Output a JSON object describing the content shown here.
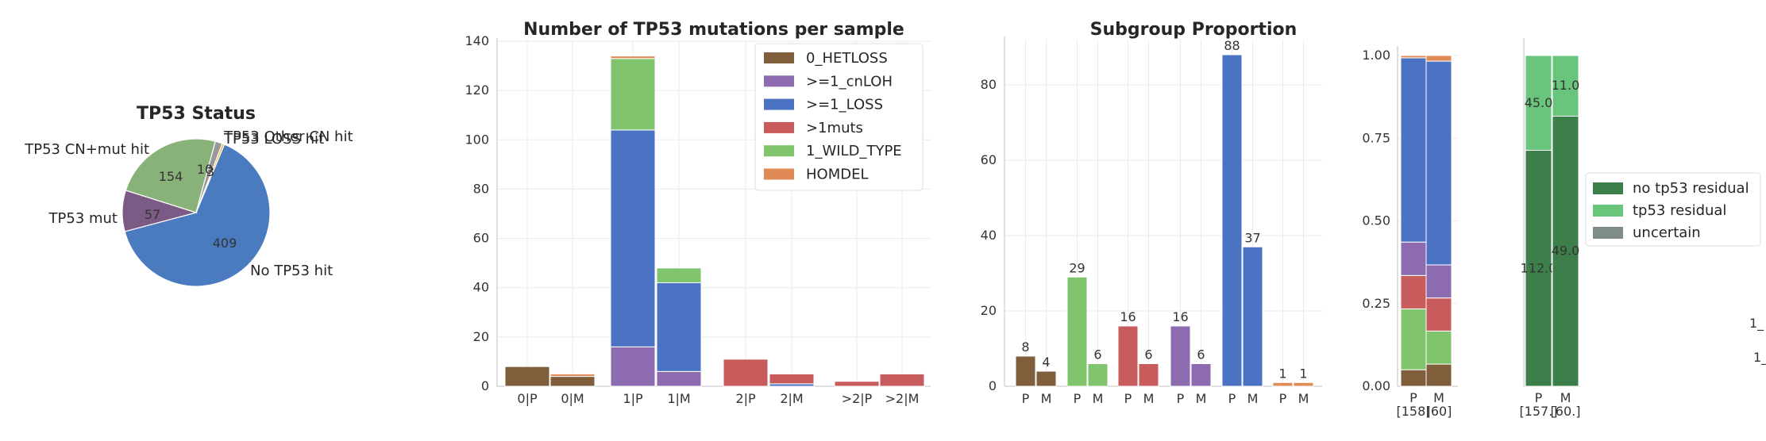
{
  "colors": {
    "HETLOSS": "#805d3b",
    "cnLOH": "#8c6bb1",
    "LOSS": "#4c72c4",
    "muts": "#c85b5b",
    "WILD": "#80c46e",
    "HOMDEL": "#e08a55",
    "pie_notp53": "#4a7bbf",
    "pie_mut": "#7b5b85",
    "pie_cnmut": "#88b27a",
    "pie_other": "#999999",
    "pie_loss": "#f0b040",
    "no_resid": "#3d7f4a",
    "resid": "#69c57c",
    "uncertain": "#7f8c87"
  },
  "chart_data": [
    {
      "type": "pie",
      "title": "TP53 Status",
      "slices": [
        {
          "label": "No TP53 hit",
          "value": 409,
          "color_key": "pie_notp53"
        },
        {
          "label": "TP53 mut",
          "value": 57,
          "color_key": "pie_mut"
        },
        {
          "label": "TP53 CN+mut hit",
          "value": 154,
          "color_key": "pie_cnmut"
        },
        {
          "label": "TP53 Other CN hit",
          "value": 10,
          "color_key": "pie_other"
        },
        {
          "label": "TP53 LOSS hit",
          "value": 3,
          "color_key": "pie_loss"
        }
      ]
    },
    {
      "type": "bar",
      "stacked": true,
      "title": "Number of TP53 mutations per sample",
      "categories": [
        "0|P",
        "0|M",
        "1|P",
        "1|M",
        "2|P",
        "2|M",
        ">2|P",
        ">2|M"
      ],
      "ylim": [
        0,
        140
      ],
      "yticks": [
        0,
        20,
        40,
        60,
        80,
        100,
        120,
        140
      ],
      "legend_position": "top-right",
      "series": [
        {
          "name": "0_HETLOSS",
          "color_key": "HETLOSS",
          "values": [
            8,
            4,
            0,
            0,
            0,
            0,
            0,
            0
          ]
        },
        {
          "name": ">=1_cnLOH",
          "color_key": "cnLOH",
          "values": [
            0,
            0,
            16,
            6,
            0,
            0,
            0,
            0
          ]
        },
        {
          "name": ">=1_LOSS",
          "color_key": "LOSS",
          "values": [
            0,
            0,
            88,
            36,
            0,
            1,
            0,
            0
          ]
        },
        {
          "name": ">1muts",
          "color_key": "muts",
          "values": [
            0,
            0,
            0,
            0,
            11,
            4,
            2,
            5
          ]
        },
        {
          "name": "1_WILD_TYPE",
          "color_key": "WILD",
          "values": [
            0,
            0,
            29,
            6,
            0,
            0,
            0,
            0
          ]
        },
        {
          "name": "HOMDEL",
          "color_key": "HOMDEL",
          "values": [
            0,
            1,
            1,
            0,
            0,
            0,
            0,
            0
          ]
        }
      ]
    },
    {
      "type": "bar",
      "title": "Subgroup Proportion",
      "ylim": [
        0,
        92
      ],
      "yticks": [
        0,
        20,
        40,
        60,
        80
      ],
      "groups": [
        {
          "color_key": "HETLOSS",
          "bars": [
            {
              "x": "P",
              "value": 8
            },
            {
              "x": "M",
              "value": 4
            }
          ]
        },
        {
          "color_key": "WILD",
          "bars": [
            {
              "x": "P",
              "value": 29
            },
            {
              "x": "M",
              "value": 6
            }
          ]
        },
        {
          "color_key": "muts",
          "bars": [
            {
              "x": "P",
              "value": 16
            },
            {
              "x": "M",
              "value": 6
            }
          ]
        },
        {
          "color_key": "cnLOH",
          "bars": [
            {
              "x": "P",
              "value": 16
            },
            {
              "x": "M",
              "value": 6
            }
          ]
        },
        {
          "color_key": "LOSS",
          "bars": [
            {
              "x": "P",
              "value": 88
            },
            {
              "x": "M",
              "value": 37
            }
          ]
        },
        {
          "color_key": "HOMDEL",
          "bars": [
            {
              "x": "P",
              "value": 1
            },
            {
              "x": "M",
              "value": 1
            }
          ]
        }
      ]
    },
    {
      "type": "bar",
      "stacked": true,
      "normalized": true,
      "ylim": [
        0,
        1
      ],
      "yticks": [
        "0.00",
        "0.25",
        "0.50",
        "0.75",
        "1.00"
      ],
      "bars": [
        {
          "x": "P",
          "sub": "[158]",
          "stack": [
            {
              "color_key": "HETLOSS",
              "value": 0.05
            },
            {
              "color_key": "WILD",
              "value": 0.184
            },
            {
              "color_key": "muts",
              "value": 0.101
            },
            {
              "color_key": "cnLOH",
              "value": 0.101
            },
            {
              "color_key": "LOSS",
              "value": 0.557
            },
            {
              "color_key": "HOMDEL",
              "value": 0.007
            }
          ]
        },
        {
          "x": "M",
          "sub": "[60]",
          "stack": [
            {
              "color_key": "HETLOSS",
              "value": 0.067
            },
            {
              "color_key": "WILD",
              "value": 0.1
            },
            {
              "color_key": "muts",
              "value": 0.1
            },
            {
              "color_key": "cnLOH",
              "value": 0.1
            },
            {
              "color_key": "LOSS",
              "value": 0.616
            },
            {
              "color_key": "HOMDEL",
              "value": 0.017
            }
          ]
        }
      ]
    },
    {
      "type": "bar",
      "stacked": true,
      "normalized": true,
      "legend_position": "right",
      "legend": [
        {
          "name": "no tp53 residual",
          "color_key": "no_resid"
        },
        {
          "name": "tp53 residual",
          "color_key": "resid"
        },
        {
          "name": "uncertain",
          "color_key": "uncertain"
        }
      ],
      "bars": [
        {
          "x": "P",
          "sub": "[157.]",
          "stack": [
            {
              "color_key": "no_resid",
              "value": 112,
              "label": "112.0"
            },
            {
              "color_key": "resid",
              "value": 45,
              "label": "45.0"
            }
          ]
        },
        {
          "x": "M",
          "sub": "[60.]",
          "stack": [
            {
              "color_key": "no_resid",
              "value": 49,
              "label": "49.0"
            },
            {
              "color_key": "resid",
              "value": 11,
              "label": "11.0"
            }
          ]
        }
      ]
    }
  ],
  "edge_fragments": [
    "1_",
    "1_"
  ]
}
